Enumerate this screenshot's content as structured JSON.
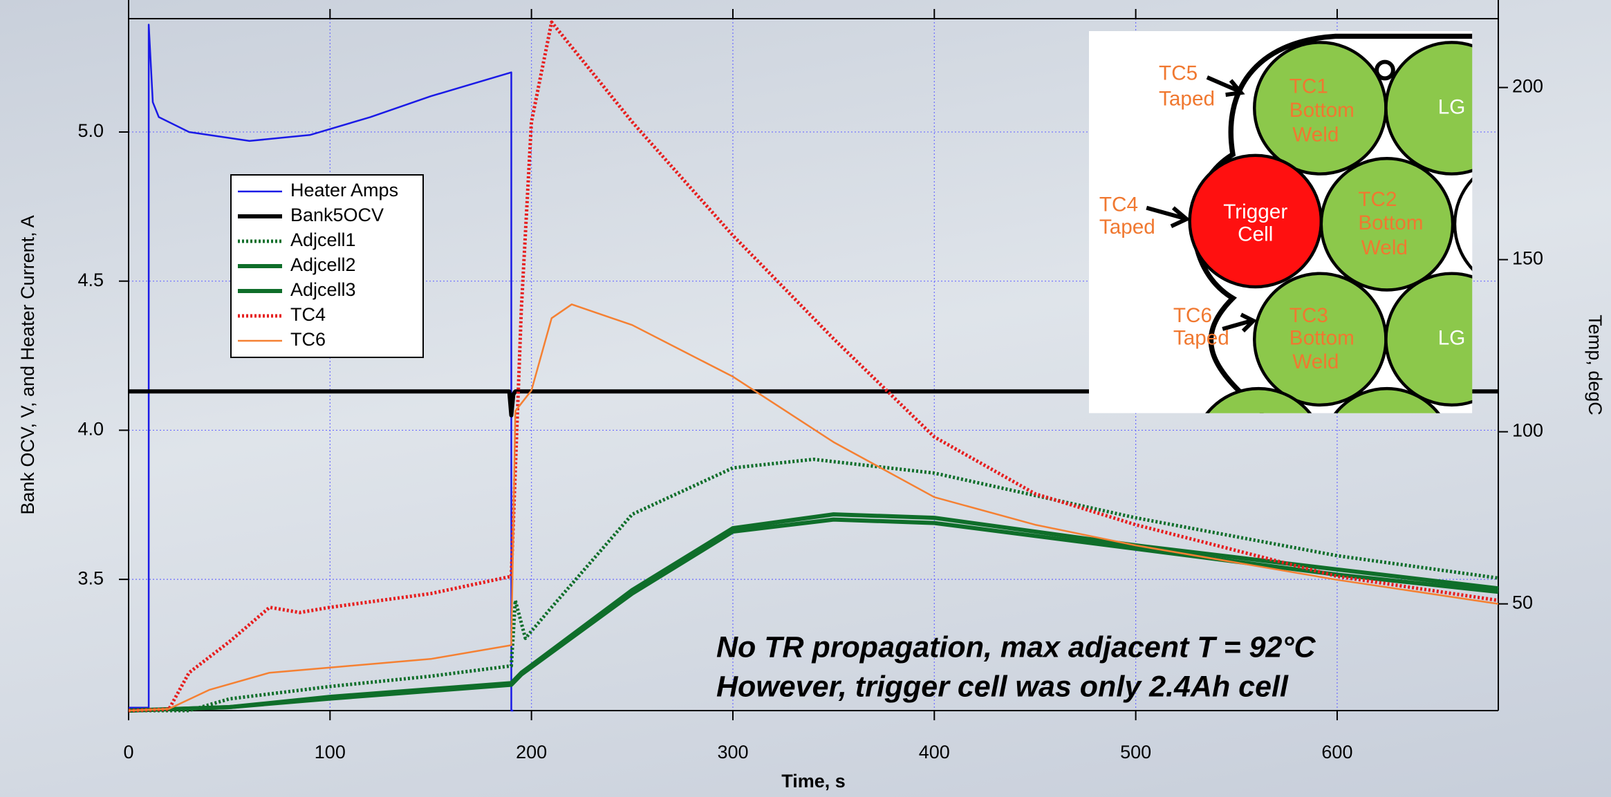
{
  "chart_data": {
    "type": "line",
    "xlabel": "Time, s",
    "ylabel": "Bank OCV, V, and Heater Current, A",
    "y2label": "Temp, degC",
    "xlim": [
      0,
      680
    ],
    "xticks": [
      0,
      100,
      200,
      300,
      400,
      500,
      600
    ],
    "ylim": [
      3.06,
      5.38
    ],
    "yticks": [
      3.5,
      {
        "value": 4,
        "label": "4.0"
      },
      4.5,
      {
        "value": 5,
        "label": "5.0"
      }
    ],
    "y2lim": [
      19,
      220
    ],
    "y2ticks": [
      50,
      100,
      150,
      200
    ],
    "grid": true,
    "legend": "upper left",
    "series": [
      {
        "name": "Heater Amps",
        "color": "#1a1ae6",
        "style": "solid",
        "axis": "y",
        "x": [
          0,
          10,
          10,
          12,
          15,
          30,
          60,
          90,
          120,
          150,
          190,
          190,
          191
        ],
        "values": [
          3.07,
          3.07,
          5.36,
          5.1,
          5.05,
          5.0,
          4.97,
          4.99,
          5.05,
          5.12,
          5.2,
          3.06,
          3.06
        ]
      },
      {
        "name": "Bank5OCV",
        "color": "#000000",
        "style": "thick",
        "axis": "y",
        "x": [
          0,
          189,
          190,
          191,
          192,
          680
        ],
        "values": [
          4.13,
          4.13,
          4.05,
          4.12,
          4.13,
          4.13
        ]
      },
      {
        "name": "Adjcell1",
        "color": "#0f6e2a",
        "style": "dotted",
        "axis": "y2",
        "x": [
          0,
          30,
          50,
          100,
          150,
          190,
          192,
          197,
          210,
          250,
          300,
          340,
          400,
          500,
          600,
          680
        ],
        "values": [
          19,
          19,
          22.4,
          26,
          29,
          32,
          51,
          40,
          49,
          76,
          89.5,
          92,
          88,
          75,
          64,
          57.5
        ]
      },
      {
        "name": "Adjcell2",
        "color": "#0f6e2a",
        "style": "thick",
        "axis": "y2",
        "x": [
          0,
          50,
          100,
          190,
          195,
          250,
          300,
          350,
          400,
          500,
          600,
          680
        ],
        "values": [
          19,
          20,
          23,
          27,
          30,
          54,
          72,
          76,
          75,
          67,
          60,
          54.5
        ]
      },
      {
        "name": "Adjcell3",
        "color": "#0f6e2a",
        "style": "thick",
        "axis": "y2",
        "x": [
          0,
          50,
          100,
          190,
          195,
          250,
          300,
          350,
          400,
          500,
          600,
          680
        ],
        "values": [
          19,
          20,
          22.5,
          26.5,
          29.5,
          53,
          71,
          74.5,
          73.5,
          66,
          58.5,
          53.5
        ]
      },
      {
        "name": "TC4",
        "color": "#e61e1e",
        "style": "dotted",
        "axis": "y2",
        "x": [
          0,
          20,
          30,
          50,
          70,
          85,
          100,
          150,
          190,
          195,
          200,
          210,
          250,
          300,
          350,
          400,
          450,
          500,
          600,
          680
        ],
        "values": [
          19,
          19.4,
          30,
          39,
          49,
          47.5,
          49,
          53,
          58,
          136,
          190,
          219,
          190,
          157,
          127,
          98.5,
          82,
          73,
          58,
          51
        ]
      },
      {
        "name": "TC6",
        "color": "#f58032",
        "style": "solid",
        "axis": "y2",
        "x": [
          0,
          20,
          40,
          70,
          100,
          150,
          190,
          192,
          200,
          210,
          220,
          250,
          300,
          350,
          400,
          450,
          500,
          600,
          680
        ],
        "values": [
          19,
          19.5,
          25,
          30,
          31.5,
          34,
          38,
          106,
          112,
          133,
          137,
          131,
          116,
          97,
          81,
          73,
          67,
          57,
          50
        ]
      }
    ],
    "annotations": [
      "No TR propagation, max adjacent T = 92°C",
      "However, trigger cell was only 2.4Ah cell"
    ]
  },
  "inset": {
    "tc5": [
      "TC5",
      "Taped"
    ],
    "tc4": [
      "TC4",
      "Taped"
    ],
    "tc6": [
      "TC6",
      "Taped"
    ],
    "tc1": [
      "TC1",
      "Bottom",
      "Weld"
    ],
    "tc2": [
      "TC2",
      "Bottom",
      "Weld"
    ],
    "tc3": [
      "TC3",
      "Bottom",
      "Weld"
    ],
    "trigger": [
      "Trigger",
      "Cell"
    ],
    "lg1": "LG",
    "lg2": "LG"
  }
}
